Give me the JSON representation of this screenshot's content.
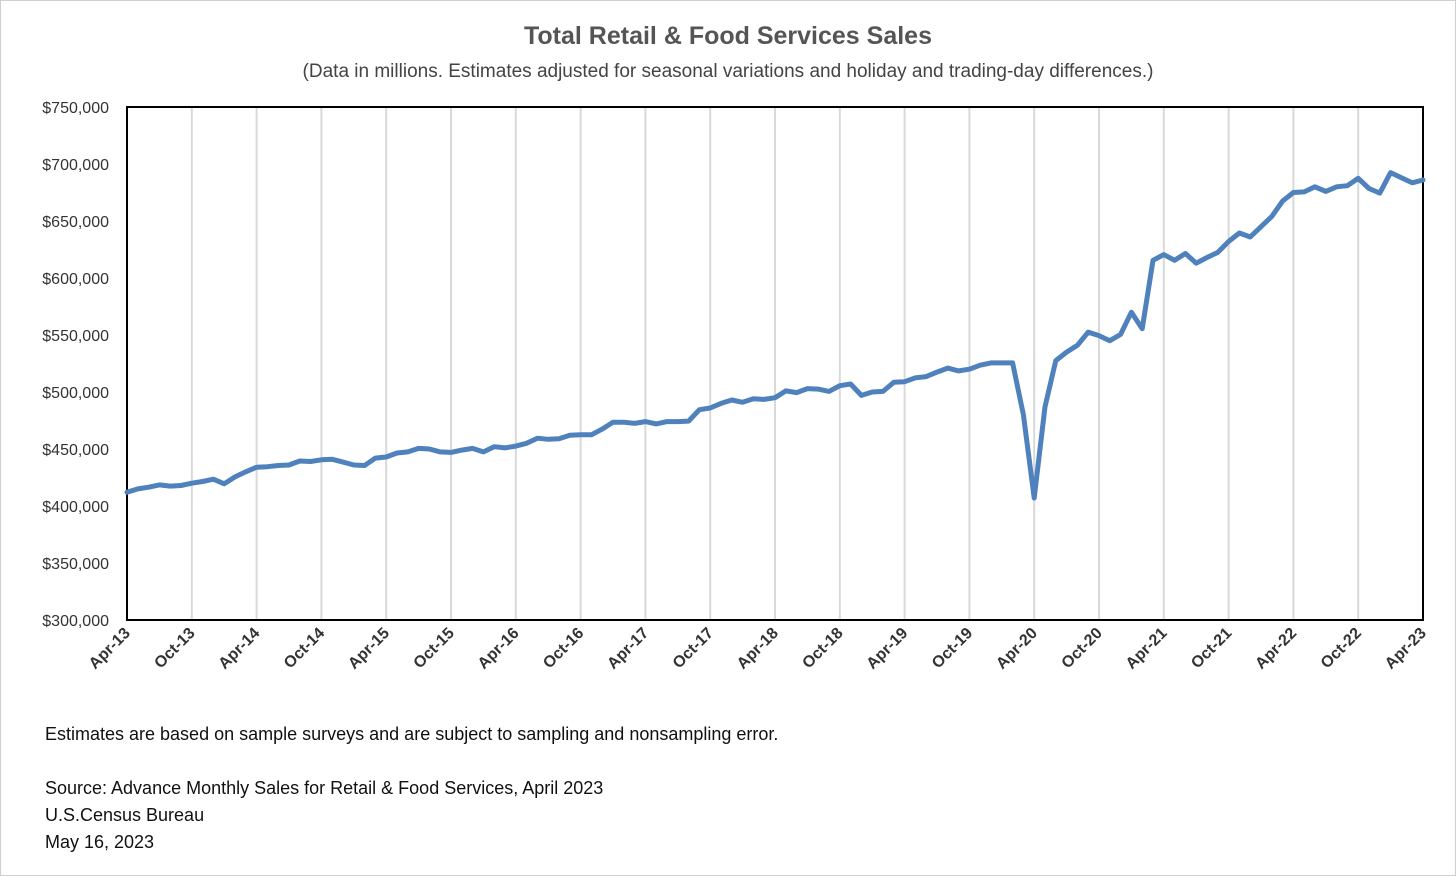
{
  "chart_data": {
    "type": "line",
    "title": "Total Retail & Food Services Sales",
    "subtitle": "(Data in millions. Estimates adjusted for seasonal variations and holiday and trading-day differences.)",
    "xlabel": "",
    "ylabel": "",
    "ylim": [
      300000,
      750000
    ],
    "y_ticks": [
      300000,
      350000,
      400000,
      450000,
      500000,
      550000,
      600000,
      650000,
      700000,
      750000
    ],
    "y_tick_labels": [
      "$300,000",
      "$350,000",
      "$400,000",
      "$450,000",
      "$500,000",
      "$550,000",
      "$600,000",
      "$650,000",
      "$700,000",
      "$750,000"
    ],
    "x_start": "Apr-13",
    "x_end": "Apr-23",
    "x_tick_labels": [
      "Apr-13",
      "Oct-13",
      "Apr-14",
      "Oct-14",
      "Apr-15",
      "Oct-15",
      "Apr-16",
      "Oct-16",
      "Apr-17",
      "Oct-17",
      "Apr-18",
      "Oct-18",
      "Apr-19",
      "Oct-19",
      "Apr-20",
      "Oct-20",
      "Apr-21",
      "Oct-21",
      "Apr-22",
      "Oct-22",
      "Apr-23"
    ],
    "grid": "vertical",
    "line_color": "#4f81bd",
    "series": [
      {
        "values": [
          412000,
          415000,
          416500,
          418500,
          417500,
          418000,
          420000,
          421500,
          423500,
          419500,
          425500,
          430000,
          434000,
          434500,
          435500,
          436000,
          439500,
          439000,
          440500,
          441000,
          438500,
          436000,
          435500,
          442000,
          443000,
          446500,
          447500,
          450500,
          450000,
          447500,
          447000,
          449000,
          450500,
          447500,
          452000,
          451000,
          452500,
          455000,
          459500,
          458500,
          459000,
          462000,
          462500,
          462500,
          467500,
          473500,
          473500,
          472500,
          474000,
          472000,
          474000,
          474000,
          474500,
          484500,
          486000,
          490000,
          493000,
          491000,
          494000,
          493500,
          495000,
          501000,
          499500,
          503000,
          502500,
          500500,
          505500,
          507000,
          497000,
          500000,
          500500,
          508500,
          509000,
          512500,
          513500,
          517500,
          521000,
          518500,
          520000,
          523500,
          525500,
          525500,
          525500,
          480000,
          407000,
          487000,
          527500,
          535000,
          541000,
          552500,
          549500,
          545000,
          550500,
          570000,
          555500,
          615500,
          620500,
          615500,
          621500,
          613000,
          618000,
          622500,
          632000,
          639500,
          636000,
          645000,
          654000,
          667500,
          675000,
          675500,
          680000,
          676000,
          680000,
          681000,
          687500,
          678500,
          674500,
          692500,
          688000,
          683500,
          686000
        ]
      }
    ]
  },
  "footnote": {
    "note": "Estimates are based on sample surveys and are subject to sampling and nonsampling error.",
    "source": "Source: Advance Monthly Sales for Retail & Food Services, April 2023",
    "agency": "U.S.Census Bureau",
    "date": "May 16, 2023"
  }
}
